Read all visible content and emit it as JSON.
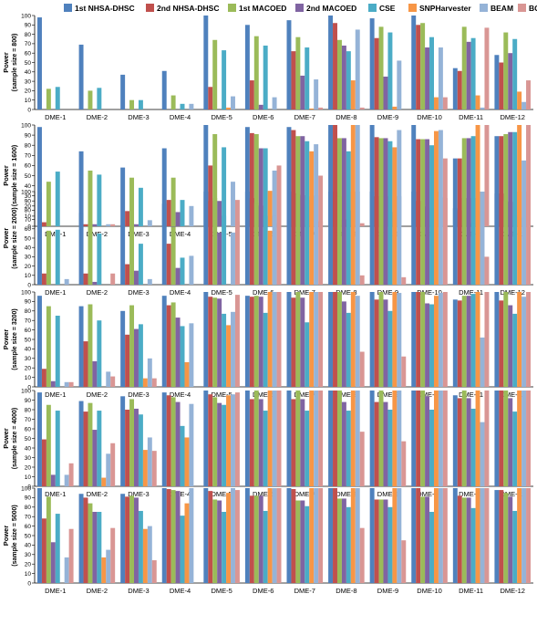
{
  "legend": {
    "placement": "top",
    "items": [
      {
        "label": "1st NHSA-DHSC",
        "color": "#4F81BD"
      },
      {
        "label": "2nd NHSA-DHSC",
        "color": "#C0504D"
      },
      {
        "label": "1st MACOED",
        "color": "#9BBB59"
      },
      {
        "label": "2nd MACOED",
        "color": "#8064A2"
      },
      {
        "label": "CSE",
        "color": "#4BACC6"
      },
      {
        "label": "SNPHarvester",
        "color": "#F79646"
      },
      {
        "label": "BEAM",
        "color": "#95B3D7"
      },
      {
        "label": "BOOST",
        "color": "#D99694"
      }
    ]
  },
  "chart_data": [
    {
      "type": "bar",
      "ylabel_lines": [
        "Power",
        "(sample size = 800)"
      ],
      "ylim": [
        0,
        100
      ],
      "yticks": [
        0,
        10,
        20,
        30,
        40,
        50,
        60,
        70,
        80,
        90,
        100
      ],
      "grid": false,
      "categories": [
        "DME-1",
        "DME-2",
        "DME-3",
        "DME-4",
        "DME-5",
        "DME-6",
        "DME-7",
        "DME-8",
        "DME-9",
        "DME-10",
        "DME-11",
        "DME-12"
      ],
      "series": [
        {
          "name": "1st NHSA-DHSC",
          "values": [
            98,
            69,
            37,
            41,
            100,
            90,
            95,
            100,
            97,
            100,
            44,
            58
          ]
        },
        {
          "name": "2nd NHSA-DHSC",
          "values": [
            0,
            0,
            0,
            0,
            24,
            31,
            62,
            92,
            76,
            90,
            41,
            50
          ]
        },
        {
          "name": "1st MACOED",
          "values": [
            22,
            20,
            10,
            15,
            74,
            78,
            77,
            74,
            88,
            92,
            88,
            82
          ]
        },
        {
          "name": "2nd MACOED",
          "values": [
            0,
            0,
            0,
            0,
            0,
            5,
            36,
            68,
            35,
            66,
            72,
            60
          ]
        },
        {
          "name": "CSE",
          "values": [
            24,
            23,
            10,
            6,
            63,
            68,
            66,
            62,
            82,
            77,
            76,
            75
          ]
        },
        {
          "name": "SNPHarvester",
          "values": [
            0,
            0,
            0,
            0,
            2,
            0,
            1,
            31,
            3,
            13,
            15,
            19
          ]
        },
        {
          "name": "BEAM",
          "values": [
            0,
            0,
            0,
            6,
            14,
            13,
            32,
            85,
            52,
            66,
            2,
            8
          ]
        },
        {
          "name": "BOOST",
          "values": [
            0,
            0,
            0,
            0,
            0,
            0,
            2,
            2,
            0,
            13,
            87,
            31
          ]
        }
      ]
    },
    {
      "type": "bar",
      "ylabel_lines": [
        "Power",
        "(sample size = 1600)"
      ],
      "ylim": [
        0,
        100
      ],
      "yticks": [
        0,
        10,
        20,
        30,
        40,
        50,
        60,
        70,
        80,
        90,
        100
      ],
      "grid": false,
      "categories": [
        "DME-1",
        "DME-2",
        "DME-3",
        "DME-4",
        "DME-5",
        "DME-6",
        "DME-7",
        "DME-8",
        "DME-9",
        "DME-10",
        "DME-11",
        "DME-12"
      ],
      "series": [
        {
          "name": "1st NHSA-DHSC",
          "values": [
            98,
            74,
            58,
            77,
            100,
            98,
            98,
            100,
            100,
            100,
            67,
            89
          ]
        },
        {
          "name": "2nd NHSA-DHSC",
          "values": [
            4,
            2,
            15,
            26,
            60,
            92,
            95,
            100,
            88,
            86,
            67,
            89
          ]
        },
        {
          "name": "1st MACOED",
          "values": [
            44,
            55,
            48,
            48,
            91,
            91,
            89,
            87,
            87,
            86,
            87,
            91
          ]
        },
        {
          "name": "2nd MACOED",
          "values": [
            0,
            2,
            2,
            14,
            25,
            77,
            89,
            87,
            87,
            86,
            87,
            93
          ]
        },
        {
          "name": "CSE",
          "values": [
            54,
            51,
            38,
            26,
            78,
            77,
            84,
            74,
            84,
            80,
            89,
            93
          ]
        },
        {
          "name": "SNPHarvester",
          "values": [
            0,
            0,
            0,
            0,
            0,
            35,
            74,
            100,
            78,
            94,
            100,
            100
          ]
        },
        {
          "name": "BEAM",
          "values": [
            0,
            2,
            6,
            20,
            44,
            55,
            81,
            100,
            95,
            95,
            15,
            65
          ]
        },
        {
          "name": "BOOST",
          "values": [
            0,
            2,
            0,
            0,
            26,
            60,
            50,
            3,
            0,
            67,
            100,
            100
          ]
        }
      ]
    },
    {
      "type": "bar",
      "ylabel_lines": [
        "Power",
        "(sample size = 2000)"
      ],
      "ylim": [
        0,
        100
      ],
      "yticks": [
        0,
        10,
        20,
        30,
        40,
        50,
        60,
        70,
        80,
        90,
        100
      ],
      "grid": false,
      "categories": [
        "DME-1",
        "DME-2",
        "DME-3",
        "DME-4",
        "DME-5",
        "DME-6",
        "DME-7",
        "DME-8",
        "DME-9",
        "DME-10",
        "DME-11",
        "DME-12"
      ],
      "series": [
        {
          "name": "1st NHSA-DHSC",
          "values": [
            99,
            77,
            64,
            87,
            100,
            100,
            100,
            100,
            100,
            100,
            82,
            98
          ]
        },
        {
          "name": "2nd NHSA-DHSC",
          "values": [
            12,
            12,
            22,
            44,
            90,
            93,
            98,
            100,
            95,
            90,
            80,
            98
          ]
        },
        {
          "name": "1st MACOED",
          "values": [
            58,
            68,
            66,
            62,
            93,
            88,
            97,
            95,
            95,
            86,
            93,
            90
          ]
        },
        {
          "name": "2nd MACOED",
          "values": [
            0,
            3,
            15,
            18,
            56,
            85,
            96,
            70,
            95,
            84,
            93,
            89
          ]
        },
        {
          "name": "CSE",
          "values": [
            59,
            55,
            44,
            29,
            74,
            74,
            91,
            80,
            78,
            82,
            66,
            74
          ]
        },
        {
          "name": "SNPHarvester",
          "values": [
            0,
            0,
            0,
            0,
            0,
            58,
            95,
            100,
            95,
            100,
            93,
            100
          ]
        },
        {
          "name": "BEAM",
          "values": [
            6,
            0,
            6,
            31,
            56,
            74,
            96,
            100,
            95,
            94,
            100,
            72
          ]
        },
        {
          "name": "BOOST",
          "values": [
            0,
            12,
            0,
            0,
            68,
            66,
            68,
            10,
            8,
            93,
            30,
            100
          ]
        }
      ]
    },
    {
      "type": "bar",
      "ylabel_lines": [
        "Power",
        "(sample size = 3200)"
      ],
      "ylim": [
        0,
        100
      ],
      "yticks": [
        0,
        10,
        20,
        30,
        40,
        50,
        60,
        70,
        80,
        90,
        100
      ],
      "grid": false,
      "categories": [
        "DME-1",
        "DME-2",
        "DME-3",
        "DME-4",
        "DME-5",
        "DME-6",
        "DME-7",
        "DME-8",
        "DME-9",
        "DME-10",
        "DME-11",
        "DME-12"
      ],
      "series": [
        {
          "name": "1st NHSA-DHSC",
          "values": [
            96,
            85,
            80,
            96,
            100,
            96,
            100,
            100,
            100,
            100,
            92,
            100
          ]
        },
        {
          "name": "2nd NHSA-DHSC",
          "values": [
            19,
            48,
            55,
            86,
            95,
            95,
            94,
            100,
            92,
            100,
            91,
            91
          ]
        },
        {
          "name": "1st MACOED",
          "values": [
            85,
            87,
            86,
            89,
            94,
            96,
            100,
            100,
            100,
            100,
            96,
            100
          ]
        },
        {
          "name": "2nd MACOED",
          "values": [
            6,
            27,
            61,
            73,
            93,
            95,
            94,
            90,
            92,
            88,
            96,
            86
          ]
        },
        {
          "name": "CSE",
          "values": [
            75,
            70,
            66,
            64,
            77,
            78,
            68,
            78,
            80,
            87,
            98,
            77
          ]
        },
        {
          "name": "SNPHarvester",
          "values": [
            0,
            0,
            9,
            26,
            65,
            100,
            100,
            100,
            100,
            96,
            100,
            100
          ]
        },
        {
          "name": "BEAM",
          "values": [
            5,
            16,
            30,
            67,
            79,
            100,
            100,
            96,
            99,
            99,
            52,
            95
          ]
        },
        {
          "name": "BOOST",
          "values": [
            5,
            11,
            9,
            0,
            97,
            100,
            100,
            37,
            32,
            100,
            100,
            100
          ]
        }
      ]
    },
    {
      "type": "bar",
      "ylabel_lines": [
        "Power",
        "(sample size = 4000)"
      ],
      "ylim": [
        0,
        100
      ],
      "yticks": [
        0,
        10,
        20,
        30,
        40,
        50,
        60,
        70,
        80,
        90,
        100
      ],
      "grid": false,
      "categories": [
        "DME-1",
        "DME-2",
        "DME-3",
        "DME-4",
        "DME-5",
        "DME-6",
        "DME-7",
        "DME-8",
        "DME-9",
        "DME-10",
        "DME-11",
        "DME-12"
      ],
      "series": [
        {
          "name": "1st NHSA-DHSC",
          "values": [
            98,
            89,
            94,
            98,
            100,
            100,
            100,
            100,
            100,
            100,
            95,
            100
          ]
        },
        {
          "name": "2nd NHSA-DHSC",
          "values": [
            49,
            78,
            80,
            95,
            96,
            91,
            91,
            100,
            88,
            100,
            92,
            100
          ]
        },
        {
          "name": "1st MACOED",
          "values": [
            85,
            87,
            91,
            93,
            93,
            100,
            100,
            100,
            100,
            100,
            100,
            100
          ]
        },
        {
          "name": "2nd MACOED",
          "values": [
            12,
            59,
            81,
            88,
            87,
            91,
            91,
            88,
            88,
            94,
            92,
            92
          ]
        },
        {
          "name": "CSE",
          "values": [
            79,
            79,
            75,
            63,
            85,
            79,
            79,
            79,
            80,
            80,
            81,
            78
          ]
        },
        {
          "name": "SNPHarvester",
          "values": [
            0,
            9,
            38,
            51,
            95,
            100,
            100,
            100,
            100,
            100,
            100,
            100
          ]
        },
        {
          "name": "BEAM",
          "values": [
            12,
            34,
            51,
            86,
            96,
            100,
            100,
            100,
            100,
            100,
            67,
            100
          ]
        },
        {
          "name": "BOOST",
          "values": [
            24,
            45,
            37,
            0,
            98,
            100,
            100,
            57,
            47,
            100,
            100,
            100
          ]
        }
      ]
    },
    {
      "type": "bar",
      "ylabel_lines": [
        "Power",
        "(sample size = 5000)"
      ],
      "ylim": [
        0,
        100
      ],
      "yticks": [
        0,
        10,
        20,
        30,
        40,
        50,
        60,
        70,
        80,
        90,
        100
      ],
      "grid": false,
      "categories": [
        "DME-1",
        "DME-2",
        "DME-3",
        "DME-4",
        "DME-5",
        "DME-6",
        "DME-7",
        "DME-8",
        "DME-9",
        "DME-10",
        "DME-11",
        "DME-12"
      ],
      "series": [
        {
          "name": "1st NHSA-DHSC",
          "values": [
            100,
            94,
            94,
            100,
            100,
            100,
            100,
            100,
            100,
            100,
            100,
            98
          ]
        },
        {
          "name": "2nd NHSA-DHSC",
          "values": [
            68,
            90,
            91,
            99,
            97,
            92,
            99,
            100,
            88,
            100,
            92,
            98
          ]
        },
        {
          "name": "1st MACOED",
          "values": [
            91,
            84,
            92,
            98,
            88,
            92,
            87,
            89,
            88,
            91,
            90,
            95
          ]
        },
        {
          "name": "2nd MACOED",
          "values": [
            43,
            75,
            90,
            97,
            87,
            92,
            87,
            89,
            88,
            91,
            90,
            91
          ]
        },
        {
          "name": "CSE",
          "values": [
            73,
            75,
            76,
            71,
            75,
            76,
            81,
            80,
            80,
            75,
            79,
            76
          ]
        },
        {
          "name": "SNPHarvester",
          "values": [
            0,
            27,
            57,
            84,
            95,
            100,
            100,
            100,
            100,
            100,
            100,
            100
          ]
        },
        {
          "name": "BEAM",
          "values": [
            27,
            35,
            60,
            100,
            100,
            100,
            100,
            100,
            100,
            100,
            100,
            100
          ]
        },
        {
          "name": "BOOST",
          "values": [
            57,
            58,
            24,
            0,
            98,
            100,
            100,
            58,
            45,
            100,
            100,
            100
          ]
        }
      ]
    }
  ]
}
